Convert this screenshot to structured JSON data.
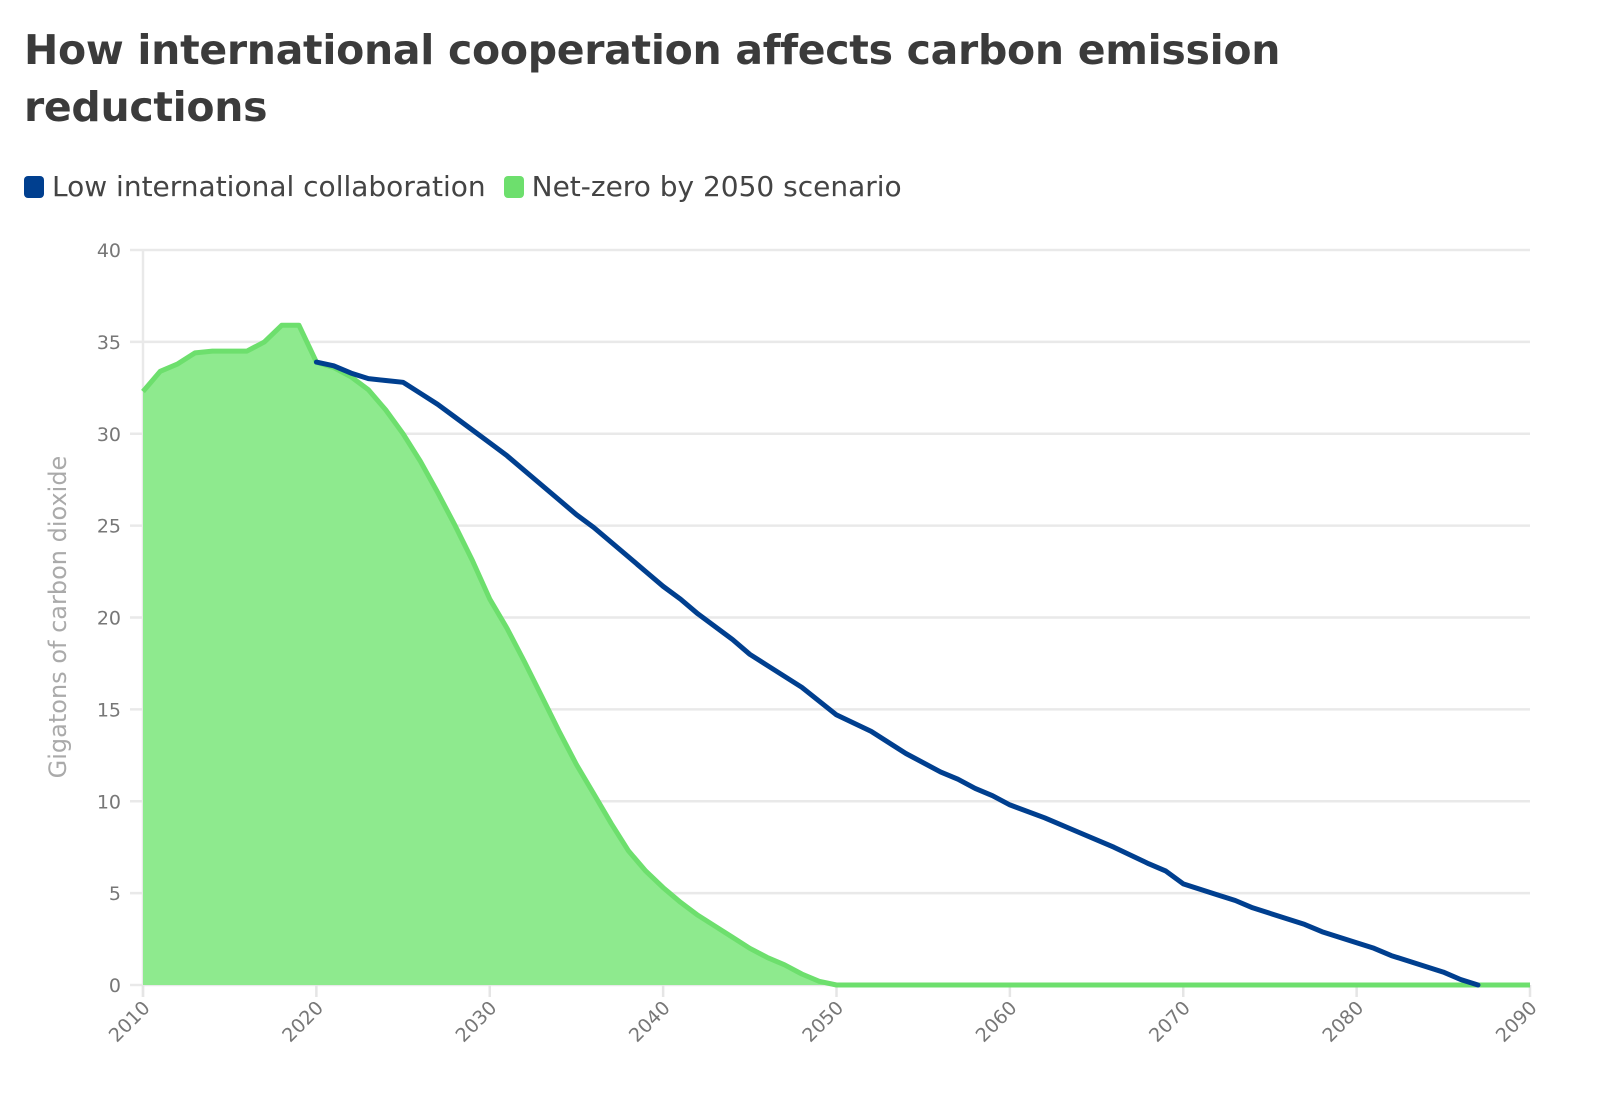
{
  "chart_data": {
    "type": "area",
    "title": "How international cooperation affects carbon emission reductions",
    "xlabel": "",
    "ylabel": "Gigatons of carbon dioxide",
    "xlim": [
      2010,
      2090
    ],
    "ylim": [
      0,
      40
    ],
    "x_ticks": [
      "2010",
      "2020",
      "2030",
      "2040",
      "2050",
      "2060",
      "2070",
      "2080",
      "2090"
    ],
    "y_ticks": [
      "0",
      "5",
      "10",
      "15",
      "20",
      "25",
      "30",
      "35",
      "40"
    ],
    "grid": true,
    "legend_position": "top-left",
    "series": [
      {
        "name": "Low international collaboration",
        "color": "#003f8f",
        "style": "line",
        "x": [
          2020,
          2021,
          2022,
          2023,
          2024,
          2025,
          2026,
          2027,
          2028,
          2030,
          2031,
          2032,
          2034,
          2035,
          2036,
          2038,
          2039,
          2040,
          2041,
          2042,
          2044,
          2045,
          2046,
          2048,
          2050,
          2052,
          2054,
          2056,
          2057,
          2058,
          2059,
          2060,
          2062,
          2064,
          2066,
          2068,
          2069,
          2070,
          2072,
          2073,
          2074,
          2076,
          2077,
          2078,
          2080,
          2081,
          2082,
          2084,
          2085,
          2086,
          2087
        ],
        "values": [
          33.9,
          33.7,
          33.3,
          33.0,
          32.9,
          32.8,
          32.2,
          31.6,
          30.9,
          29.5,
          28.8,
          28.0,
          26.4,
          25.6,
          24.9,
          23.3,
          22.5,
          21.7,
          21.0,
          20.2,
          18.8,
          18.0,
          17.4,
          16.2,
          14.7,
          13.8,
          12.6,
          11.6,
          11.2,
          10.7,
          10.3,
          9.8,
          9.1,
          8.3,
          7.5,
          6.6,
          6.2,
          5.5,
          4.9,
          4.6,
          4.2,
          3.6,
          3.3,
          2.9,
          2.3,
          2.0,
          1.6,
          1.0,
          0.7,
          0.3,
          0.0
        ]
      },
      {
        "name": "Net-zero by 2050 scenario",
        "color": "#6ddf6d",
        "fill": "#8eea8e",
        "style": "area",
        "x": [
          2010,
          2011,
          2012,
          2013,
          2014,
          2015,
          2016,
          2017,
          2018,
          2019,
          2020,
          2021,
          2022,
          2023,
          2024,
          2025,
          2026,
          2027,
          2028,
          2029,
          2030,
          2031,
          2032,
          2033,
          2034,
          2035,
          2036,
          2037,
          2038,
          2039,
          2040,
          2041,
          2042,
          2043,
          2044,
          2045,
          2046,
          2047,
          2048,
          2049,
          2050,
          2060,
          2070,
          2080,
          2090
        ],
        "values": [
          32.3,
          33.4,
          33.8,
          34.4,
          34.5,
          34.5,
          34.5,
          35.0,
          35.9,
          35.9,
          33.9,
          33.6,
          33.1,
          32.4,
          31.3,
          30.0,
          28.5,
          26.8,
          25.0,
          23.1,
          21.0,
          19.4,
          17.6,
          15.7,
          13.8,
          12.0,
          10.4,
          8.8,
          7.3,
          6.2,
          5.3,
          4.5,
          3.8,
          3.2,
          2.6,
          2.0,
          1.5,
          1.1,
          0.6,
          0.2,
          0.0,
          0.0,
          0.0,
          0.0,
          0.0
        ]
      }
    ]
  }
}
